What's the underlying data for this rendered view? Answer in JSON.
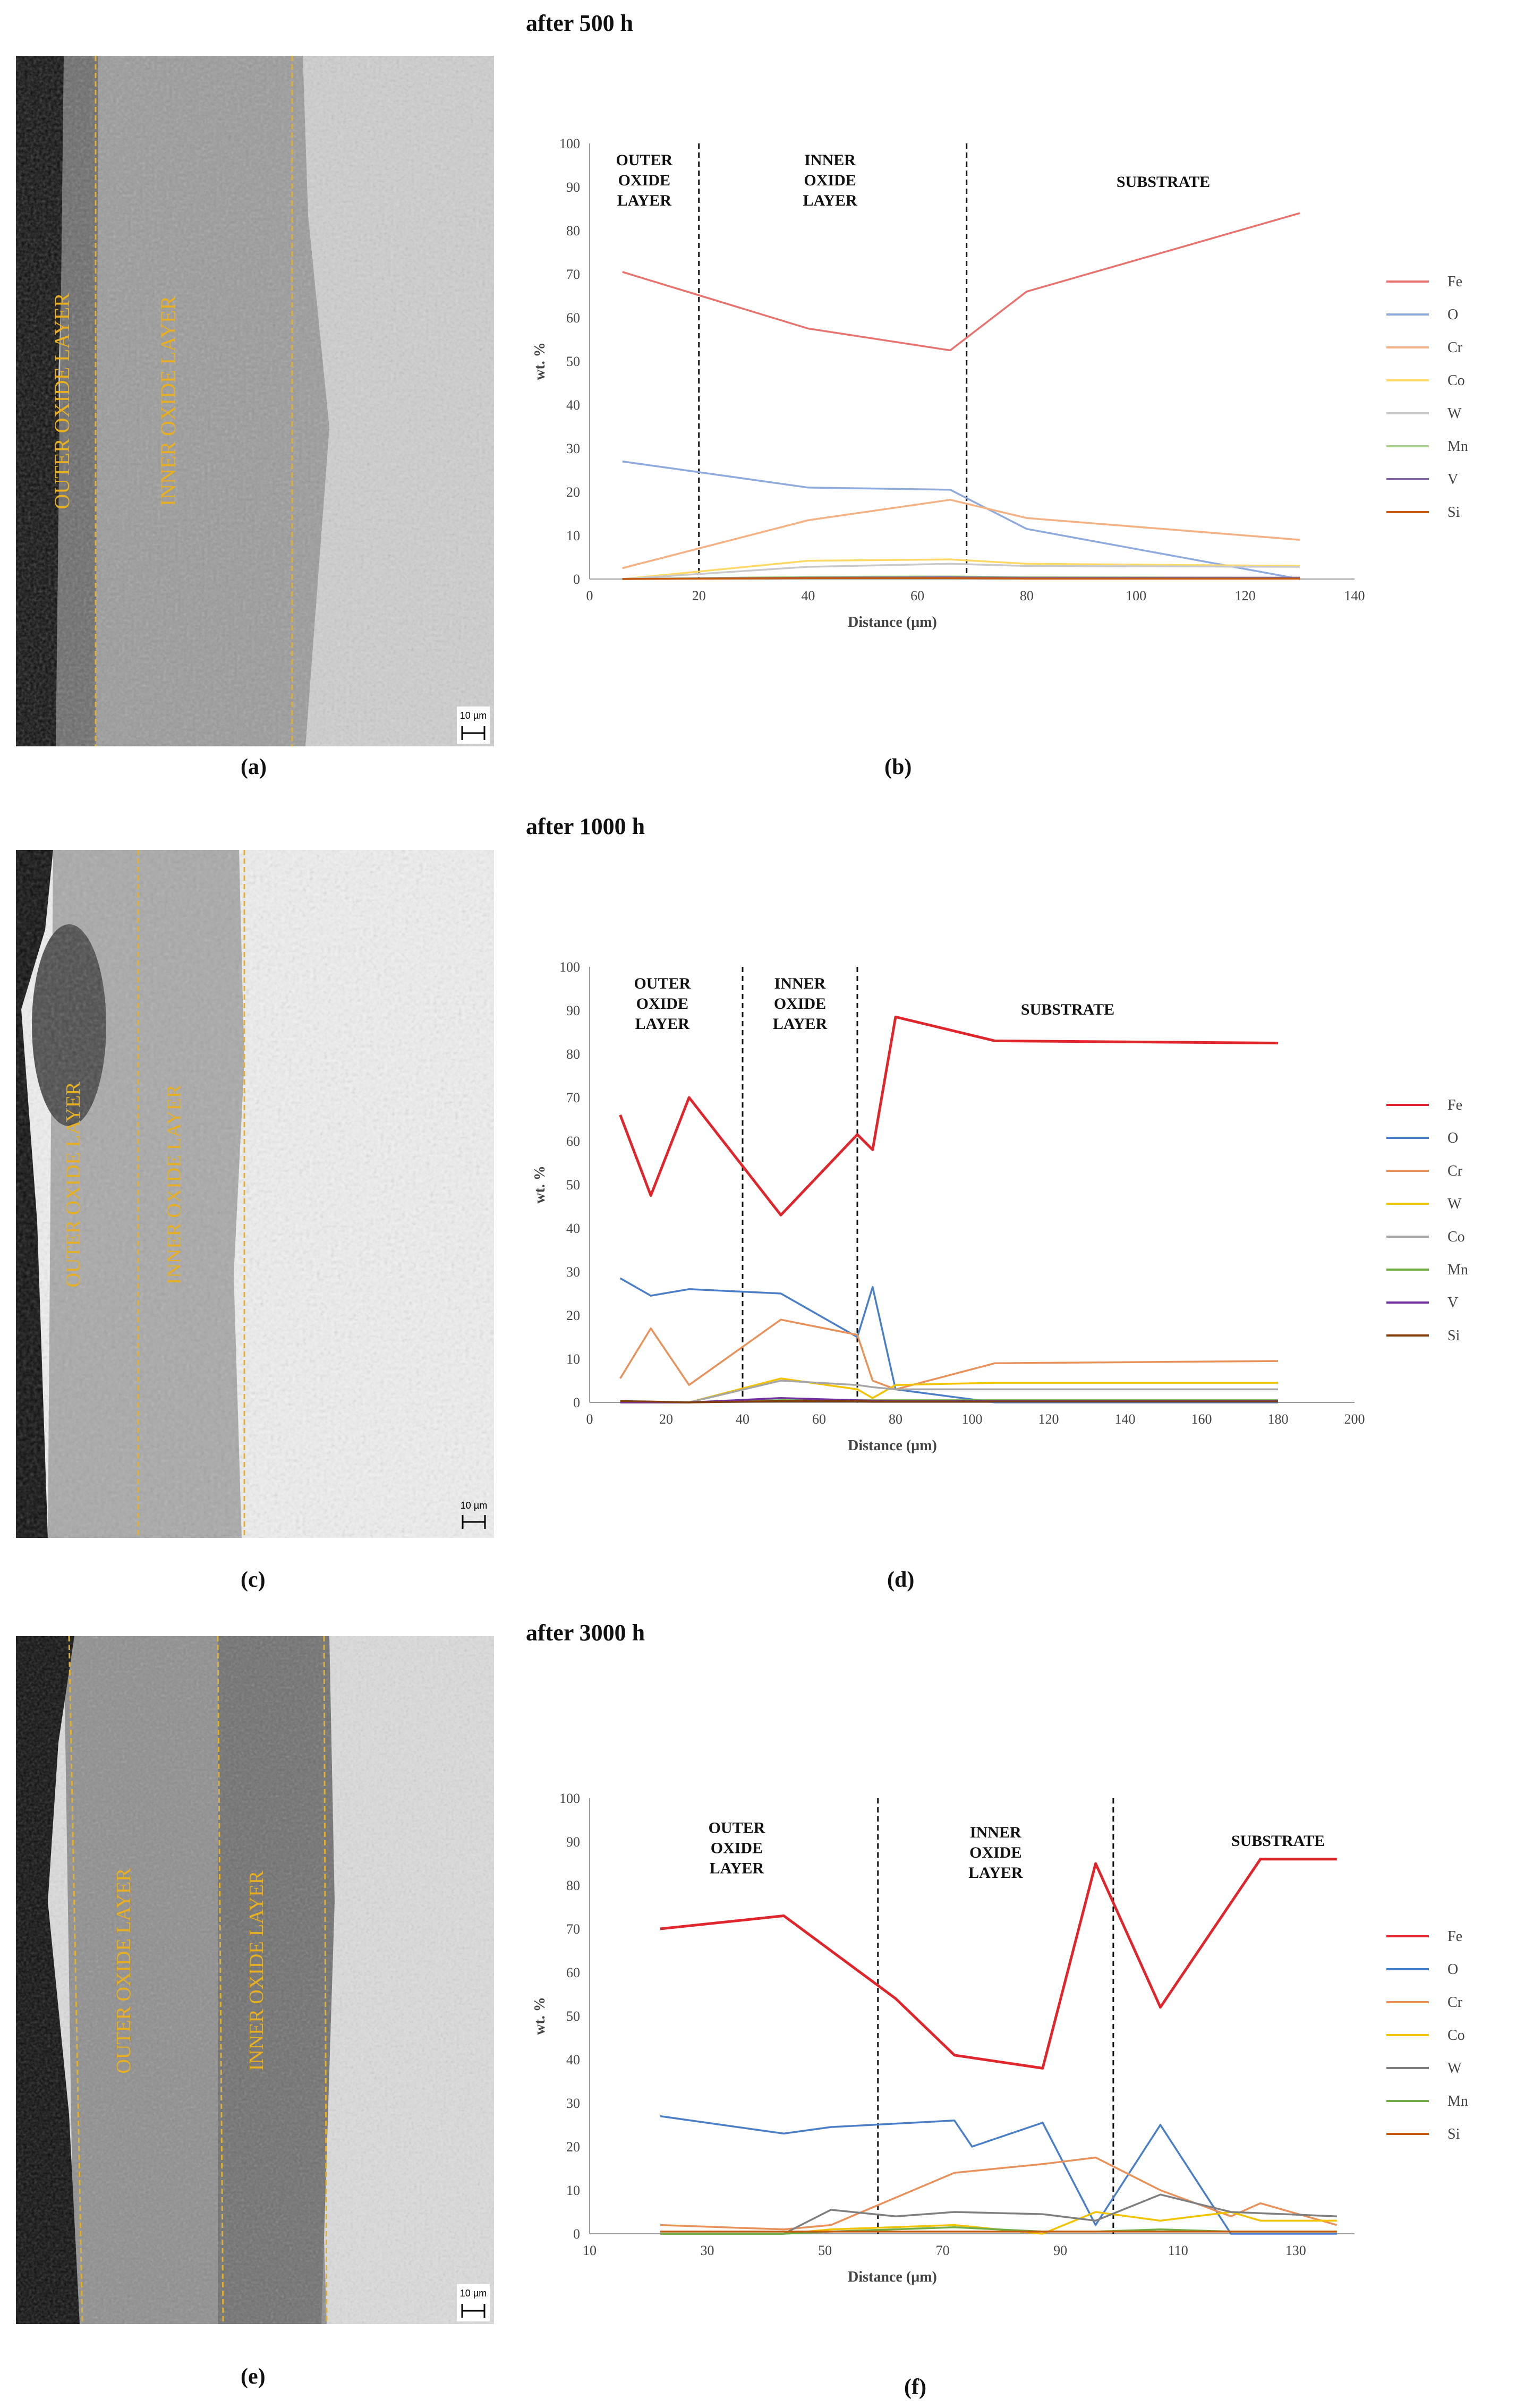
{
  "headings": [
    "after 500 h",
    "after 1000 h",
    "after 3000 h"
  ],
  "panel_labels": [
    "(a)",
    "(b)",
    "(c)",
    "(d)",
    "(e)",
    "(f)"
  ],
  "micrographs": [
    {
      "labels": [
        "OUTER OXIDE LAYER",
        "INNER OXIDE LAYER"
      ],
      "scale": "10 µm"
    },
    {
      "labels": [
        "OUTER OXIDE LAYER",
        "INNER OXIDE LAYER"
      ],
      "scale": "10 µm"
    },
    {
      "labels": [
        "OUTER OXIDE LAYER",
        "INNER OXIDE LAYER"
      ],
      "scale": "10 µm"
    }
  ],
  "chart_data": [
    {
      "type": "line",
      "xlabel": "Distance (µm)",
      "ylabel": "wt. %",
      "xlim": [
        0,
        140
      ],
      "ylim": [
        0,
        100
      ],
      "xticks": [
        0,
        20,
        40,
        60,
        80,
        100,
        120,
        140
      ],
      "yticks": [
        0,
        10,
        20,
        30,
        40,
        50,
        60,
        70,
        80,
        90,
        100
      ],
      "grid": false,
      "legend": "right",
      "dividers": [
        20,
        69
      ],
      "regions": [
        {
          "label": [
            "OUTER",
            "OXIDE",
            "LAYER"
          ],
          "x": 10,
          "y": 95
        },
        {
          "label": [
            "INNER",
            "OXIDE",
            "LAYER"
          ],
          "x": 44,
          "y": 95
        },
        {
          "label": [
            "SUBSTRATE"
          ],
          "x": 105,
          "y": 90
        }
      ],
      "series": [
        {
          "name": "Fe",
          "color": "#e8736e",
          "x": [
            6,
            40,
            66,
            80,
            130
          ],
          "y": [
            70.5,
            57.5,
            52.5,
            66,
            84
          ]
        },
        {
          "name": "O",
          "color": "#8faadc",
          "x": [
            6,
            40,
            66,
            80,
            130
          ],
          "y": [
            27,
            21,
            20.5,
            11.5,
            0
          ]
        },
        {
          "name": "Cr",
          "color": "#f4b183",
          "x": [
            6,
            40,
            66,
            80,
            130
          ],
          "y": [
            2.5,
            13.5,
            18.2,
            14,
            9
          ]
        },
        {
          "name": "Co",
          "color": "#ffd966",
          "x": [
            6,
            40,
            66,
            80,
            130
          ],
          "y": [
            0,
            4.2,
            4.5,
            3.5,
            3
          ]
        },
        {
          "name": "W",
          "color": "#c9c9c9",
          "x": [
            6,
            40,
            66,
            80,
            130
          ],
          "y": [
            0,
            2.8,
            3.5,
            3,
            2.8
          ]
        },
        {
          "name": "Mn",
          "color": "#a9d18e",
          "x": [
            6,
            40,
            66,
            80,
            130
          ],
          "y": [
            0,
            0.5,
            0.6,
            0.4,
            0.3
          ]
        },
        {
          "name": "V",
          "color": "#8064a2",
          "x": [
            6,
            40,
            66,
            80,
            130
          ],
          "y": [
            0,
            0.3,
            0.4,
            0.3,
            0.3
          ]
        },
        {
          "name": "Si",
          "color": "#c55a11",
          "x": [
            6,
            40,
            66,
            80,
            130
          ],
          "y": [
            0,
            0.2,
            0.2,
            0.1,
            0.1
          ]
        }
      ]
    },
    {
      "type": "line",
      "xlabel": "Distance (µm)",
      "ylabel": "wt. %",
      "xlim": [
        0,
        200
      ],
      "ylim": [
        0,
        100
      ],
      "xticks": [
        0,
        20,
        40,
        60,
        80,
        100,
        120,
        140,
        160,
        180,
        200
      ],
      "yticks": [
        0,
        10,
        20,
        30,
        40,
        50,
        60,
        70,
        80,
        90,
        100
      ],
      "grid": false,
      "legend": "right",
      "dividers": [
        40,
        70
      ],
      "regions": [
        {
          "label": [
            "OUTER",
            "OXIDE",
            "LAYER"
          ],
          "x": 19,
          "y": 95
        },
        {
          "label": [
            "INNER",
            "OXIDE",
            "LAYER"
          ],
          "x": 55,
          "y": 95
        },
        {
          "label": [
            "SUBSTRATE"
          ],
          "x": 125,
          "y": 89
        }
      ],
      "series": [
        {
          "name": "Fe",
          "color": "#e0262d",
          "x": [
            8,
            16,
            26,
            50,
            70,
            74,
            80,
            106,
            180
          ],
          "y": [
            66,
            47.5,
            70,
            43,
            61.5,
            58,
            88.5,
            83,
            82.5
          ]
        },
        {
          "name": "O",
          "color": "#4a7ec7",
          "x": [
            8,
            16,
            26,
            50,
            70,
            74,
            80,
            106,
            180
          ],
          "y": [
            28.5,
            24.5,
            26,
            25,
            15,
            26.5,
            3,
            0,
            0
          ]
        },
        {
          "name": "Cr",
          "color": "#e8915a",
          "x": [
            8,
            16,
            26,
            50,
            70,
            74,
            80,
            106,
            180
          ],
          "y": [
            5.5,
            17,
            4,
            19,
            15.5,
            5,
            3,
            9,
            9.5
          ]
        },
        {
          "name": "W",
          "color": "#f2c300",
          "x": [
            8,
            16,
            26,
            50,
            70,
            74,
            80,
            106,
            180
          ],
          "y": [
            0,
            0,
            0,
            5.5,
            3,
            1,
            4,
            4.5,
            4.5
          ]
        },
        {
          "name": "Co",
          "color": "#a6a6a6",
          "x": [
            8,
            16,
            26,
            50,
            70,
            74,
            80,
            106,
            180
          ],
          "y": [
            0,
            0,
            0,
            5,
            4,
            3.5,
            3,
            3,
            3
          ]
        },
        {
          "name": "Mn",
          "color": "#70ad47",
          "x": [
            8,
            16,
            26,
            50,
            70,
            74,
            80,
            106,
            180
          ],
          "y": [
            0,
            0,
            0,
            0.5,
            0.5,
            0.5,
            0.5,
            0.5,
            0.5
          ]
        },
        {
          "name": "V",
          "color": "#7030a0",
          "x": [
            8,
            16,
            26,
            50,
            70,
            74,
            80,
            106,
            180
          ],
          "y": [
            0,
            0,
            0,
            1,
            0.5,
            0.4,
            0.3,
            0.3,
            0.3
          ]
        },
        {
          "name": "Si",
          "color": "#843c0c",
          "x": [
            8,
            16,
            26,
            50,
            70,
            74,
            80,
            106,
            180
          ],
          "y": [
            0.3,
            0.2,
            0,
            0.3,
            0.3,
            0.2,
            0.2,
            0.2,
            0.2
          ]
        }
      ]
    },
    {
      "type": "line",
      "xlabel": "Distance (µm)",
      "ylabel": "wt. %",
      "xlim": [
        10,
        140
      ],
      "ylim": [
        0,
        100
      ],
      "xticks": [
        10,
        30,
        50,
        70,
        90,
        110,
        130
      ],
      "yticks": [
        0,
        10,
        20,
        30,
        40,
        50,
        60,
        70,
        80,
        90,
        100
      ],
      "grid": false,
      "legend": "right",
      "dividers": [
        59,
        99
      ],
      "regions": [
        {
          "label": [
            "OUTER",
            "OXIDE",
            "LAYER"
          ],
          "x": 35,
          "y": 92
        },
        {
          "label": [
            "INNER",
            "OXIDE",
            "LAYER"
          ],
          "x": 79,
          "y": 91
        },
        {
          "label": [
            "SUBSTRATE"
          ],
          "x": 127,
          "y": 89
        }
      ],
      "series": [
        {
          "name": "Fe",
          "color": "#e0262d",
          "x": [
            22,
            43,
            62,
            72,
            87,
            96,
            107,
            119,
            124,
            137
          ],
          "y": [
            70,
            73,
            54,
            41,
            38,
            85,
            52,
            76,
            86,
            86
          ]
        },
        {
          "name": "O",
          "color": "#4a7ec7",
          "x": [
            22,
            43,
            51,
            72,
            75,
            87,
            96,
            107,
            119,
            137
          ],
          "y": [
            27,
            23,
            24.5,
            26,
            20,
            25.5,
            2,
            25,
            0,
            0
          ]
        },
        {
          "name": "Cr",
          "color": "#e8915a",
          "x": [
            22,
            43,
            51,
            72,
            87,
            96,
            107,
            119,
            124,
            137
          ],
          "y": [
            2,
            1,
            2,
            14,
            16,
            17.5,
            10,
            4,
            7,
            2
          ]
        },
        {
          "name": "Co",
          "color": "#f2c300",
          "x": [
            22,
            43,
            51,
            72,
            87,
            96,
            107,
            119,
            124,
            137
          ],
          "y": [
            0,
            0,
            1,
            2,
            0,
            5,
            3,
            5,
            3,
            3
          ]
        },
        {
          "name": "W",
          "color": "#7f7f7f",
          "x": [
            22,
            43,
            51,
            62,
            72,
            87,
            96,
            107,
            119,
            137
          ],
          "y": [
            0,
            0,
            5.5,
            4,
            5,
            4.5,
            3,
            9,
            5,
            4
          ]
        },
        {
          "name": "Mn",
          "color": "#70ad47",
          "x": [
            22,
            43,
            51,
            72,
            87,
            96,
            107,
            119,
            137
          ],
          "y": [
            0,
            0,
            0.5,
            1.5,
            0.5,
            0.5,
            1,
            0.5,
            0.5
          ]
        },
        {
          "name": "Si",
          "color": "#c55a11",
          "x": [
            22,
            43,
            51,
            72,
            87,
            96,
            107,
            119,
            137
          ],
          "y": [
            0.5,
            0.5,
            0.5,
            0.5,
            0.5,
            0.5,
            0.5,
            0.5,
            0.5
          ]
        }
      ]
    }
  ]
}
